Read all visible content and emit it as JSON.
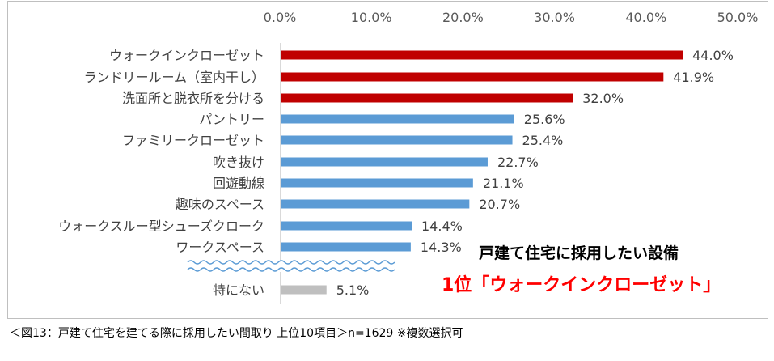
{
  "chart_data": {
    "type": "bar",
    "orientation": "horizontal",
    "x_ticks": [
      "0.0%",
      "10.0%",
      "20.0%",
      "30.0%",
      "40.0%",
      "50.0%"
    ],
    "xlim": [
      0,
      50
    ],
    "grid": false,
    "categories": [
      "ウォークインクローゼット",
      "ランドリールーム（室内干し）",
      "洗面所と脱衣所を分ける",
      "パントリー",
      "ファミリークローゼット",
      "吹き抜け",
      "回遊動線",
      "趣味のスペース",
      "ウォークスルー型シューズクローク",
      "ワークスペース",
      "特にない"
    ],
    "values": [
      44.0,
      41.9,
      32.0,
      25.6,
      25.4,
      22.7,
      21.1,
      20.7,
      14.4,
      14.3,
      5.1
    ],
    "data_labels": [
      "44.0%",
      "41.9%",
      "32.0%",
      "25.6%",
      "25.4%",
      "22.7%",
      "21.1%",
      "20.7%",
      "14.4%",
      "14.3%",
      "5.1%"
    ],
    "bar_colors": [
      "#c00000",
      "#c00000",
      "#c00000",
      "#5b9bd5",
      "#5b9bd5",
      "#5b9bd5",
      "#5b9bd5",
      "#5b9bd5",
      "#5b9bd5",
      "#5b9bd5",
      "#bfbfbf"
    ],
    "axis_break": true
  },
  "callout": {
    "line1": "戸建て住宅に採用したい設備",
    "line2": "1位「ウォークインクローゼット」"
  },
  "caption": "＜図13：戸建て住宅を建てる際に採用したい間取り 上位10項目＞n=1629 ※複数選択可",
  "colors": {
    "top3": "#c00000",
    "others": "#5b9bd5",
    "none": "#bfbfbf",
    "callout_highlight": "#ff0000",
    "axis_break_wave": "#5b9bd5"
  }
}
